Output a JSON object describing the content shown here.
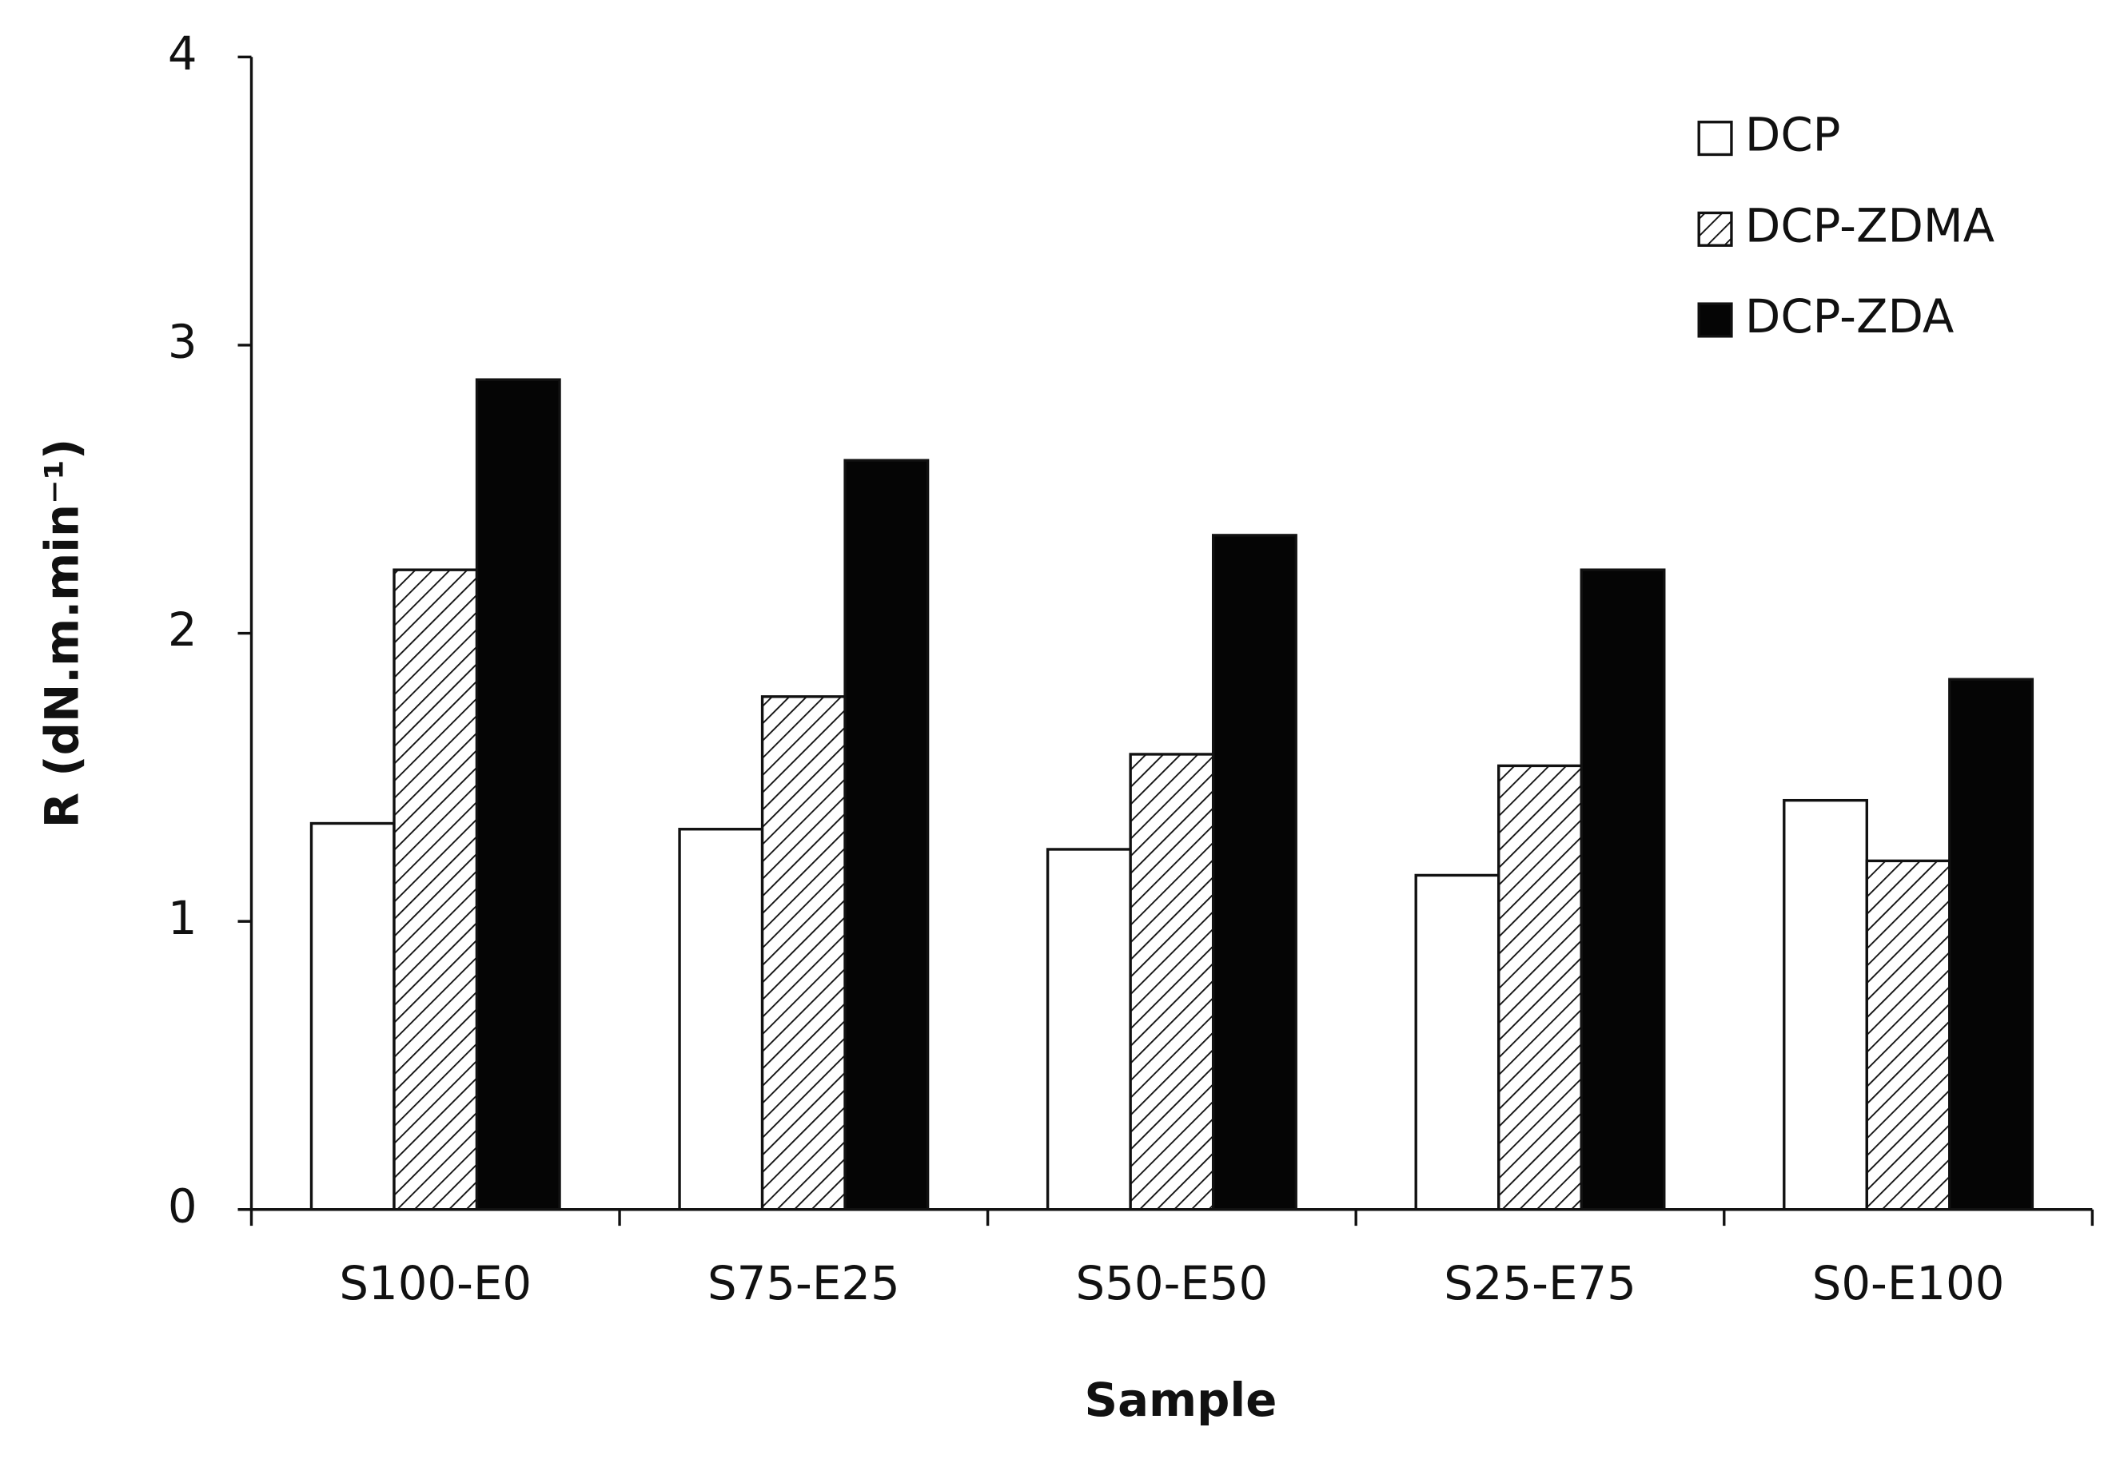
{
  "chart_data": {
    "type": "bar",
    "x_label": "Sample",
    "y_label": "R (dN.m.min⁻¹)",
    "categories": [
      "S100-E0",
      "S75-E25",
      "S50-E50",
      "S25-E75",
      "S0-E100"
    ],
    "series": [
      {
        "name": "DCP",
        "color": "#ffffff",
        "hatch": false,
        "values": [
          1.34,
          1.32,
          1.25,
          1.16,
          1.42
        ]
      },
      {
        "name": "DCP-ZDMA",
        "color": "#ffffff",
        "hatch": true,
        "values": [
          2.22,
          1.78,
          1.58,
          1.54,
          1.21
        ]
      },
      {
        "name": "DCP-ZDA",
        "color": "#050505",
        "hatch": false,
        "values": [
          2.88,
          2.6,
          2.34,
          2.22,
          1.84
        ]
      }
    ],
    "ylim": [
      0,
      4
    ],
    "yticks": [
      0,
      1,
      2,
      3,
      4
    ],
    "grid": false,
    "legend": "upper right"
  }
}
